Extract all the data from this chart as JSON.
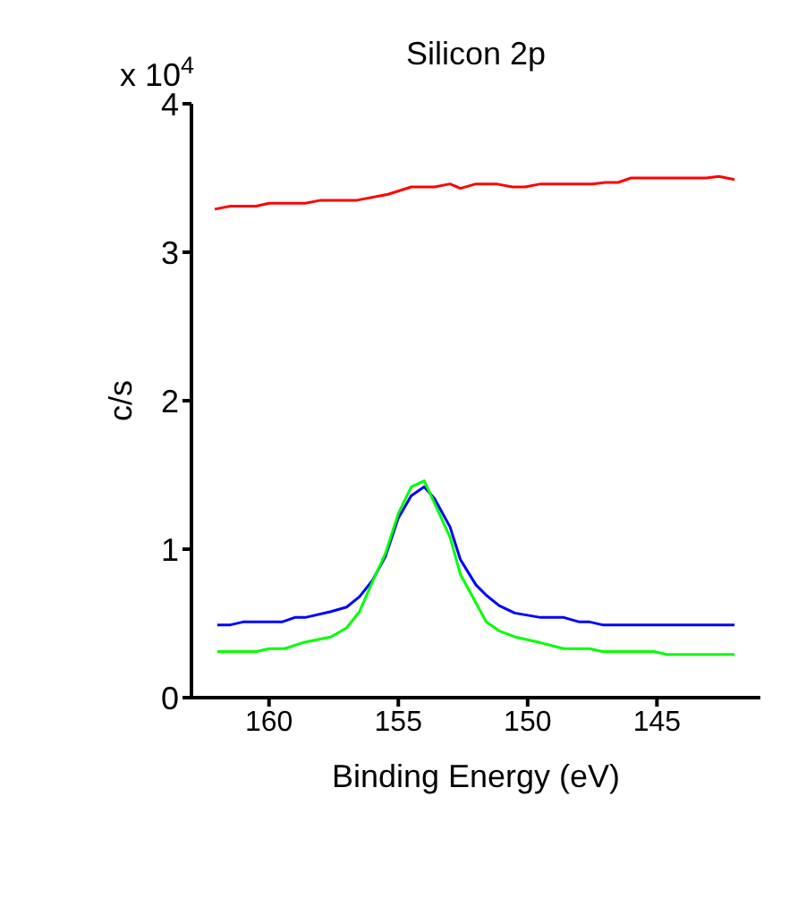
{
  "chart_data": {
    "type": "line",
    "title": "Silicon 2p",
    "xlabel": "Binding Energy (eV)",
    "ylabel": "c/s",
    "annotations": [
      "x 10$^{4}$"
    ],
    "xlim": [
      163,
      141
    ],
    "xticks": [
      160,
      155,
      150,
      145
    ],
    "ylim": [
      0,
      4
    ],
    "yticks": [
      0,
      1,
      2,
      3,
      4
    ],
    "grid": false,
    "legend": false,
    "marker": "none",
    "line_style": "solid",
    "series": [
      {
        "color": "#ff0000",
        "x": [
          162.1,
          161.5,
          160.5,
          160.0,
          158.6,
          158.0,
          156.6,
          155.4,
          154.5,
          153.6,
          153.0,
          152.6,
          152.0,
          151.2,
          150.6,
          150.1,
          149.5,
          147.5,
          147.0,
          146.5,
          146.0,
          143.1,
          142.6,
          142.0
        ],
        "values": [
          3.29,
          3.31,
          3.31,
          3.33,
          3.33,
          3.35,
          3.35,
          3.39,
          3.44,
          3.44,
          3.46,
          3.43,
          3.46,
          3.46,
          3.44,
          3.44,
          3.46,
          3.46,
          3.47,
          3.47,
          3.5,
          3.5,
          3.51,
          3.49
        ]
      },
      {
        "color": "#0000ff",
        "x": [
          162.0,
          161.5,
          161.0,
          159.5,
          159.0,
          158.6,
          157.6,
          157.0,
          156.5,
          156.0,
          155.5,
          155.0,
          154.5,
          154.0,
          153.6,
          153.0,
          152.6,
          152.0,
          151.6,
          151.1,
          150.5,
          149.5,
          148.6,
          148.0,
          147.6,
          147.1,
          142.0
        ],
        "values": [
          0.49,
          0.49,
          0.51,
          0.51,
          0.54,
          0.54,
          0.58,
          0.61,
          0.68,
          0.79,
          0.95,
          1.21,
          1.36,
          1.42,
          1.34,
          1.15,
          0.93,
          0.76,
          0.69,
          0.62,
          0.57,
          0.54,
          0.54,
          0.51,
          0.51,
          0.49,
          0.49
        ]
      },
      {
        "color": "#00ff00",
        "x": [
          162.0,
          160.5,
          160.0,
          159.4,
          158.7,
          157.6,
          157.0,
          156.5,
          156.0,
          155.5,
          155.0,
          154.5,
          154.0,
          153.6,
          153.0,
          152.6,
          152.1,
          151.6,
          151.1,
          150.5,
          149.5,
          148.6,
          147.6,
          147.1,
          145.1,
          144.6,
          142.0
        ],
        "values": [
          0.31,
          0.31,
          0.33,
          0.33,
          0.37,
          0.41,
          0.47,
          0.58,
          0.78,
          0.97,
          1.24,
          1.42,
          1.46,
          1.31,
          1.08,
          0.83,
          0.67,
          0.51,
          0.45,
          0.41,
          0.37,
          0.33,
          0.33,
          0.31,
          0.31,
          0.29,
          0.29
        ]
      }
    ]
  }
}
